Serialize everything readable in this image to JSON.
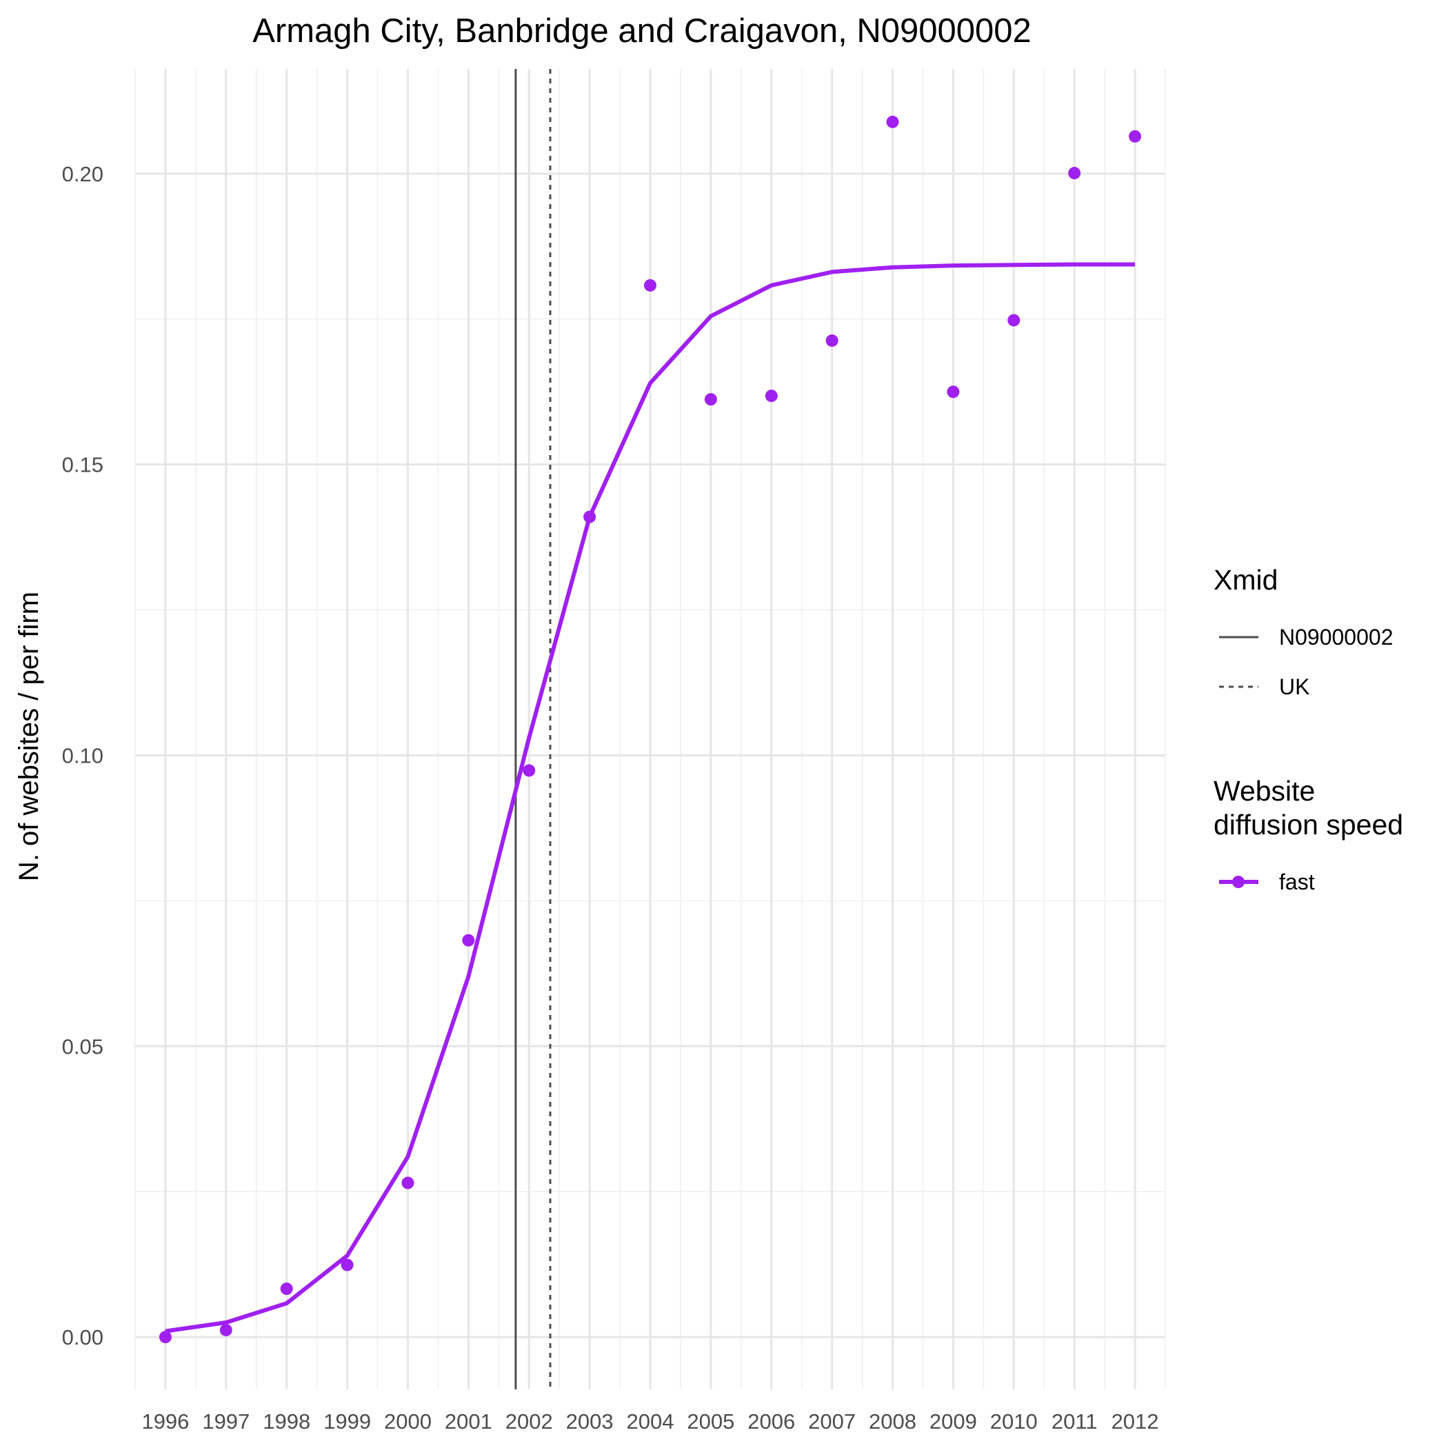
{
  "chart_data": {
    "type": "line",
    "title": "Armagh City, Banbridge and Craigavon, N09000002",
    "xlabel": "",
    "ylabel": "N. of websites / per firm",
    "x": [
      1996,
      1997,
      1998,
      1999,
      2000,
      2001,
      2002,
      2003,
      2004,
      2005,
      2006,
      2007,
      2008,
      2009,
      2010,
      2011,
      2012
    ],
    "x_tick_labels": [
      "1996",
      "1997",
      "1998",
      "1999",
      "2000",
      "2001",
      "2002",
      "2003",
      "2004",
      "2005",
      "2006",
      "2007",
      "2008",
      "2009",
      "2010",
      "2011",
      "2012"
    ],
    "xlim": [
      1995.5,
      2012.5
    ],
    "ylim": [
      -0.009,
      0.218
    ],
    "y_ticks": [
      0.0,
      0.05,
      0.1,
      0.15,
      0.2
    ],
    "y_tick_labels": [
      "0.00",
      "0.05",
      "0.10",
      "0.15",
      "0.20"
    ],
    "grid": true,
    "series": [
      {
        "name": "fast",
        "color": "#a020f0",
        "points": [
          0.0,
          0.0012,
          0.0083,
          0.0124,
          0.0265,
          0.0682,
          0.0974,
          0.141,
          0.1808,
          0.1612,
          0.1618,
          0.1713,
          0.2089,
          0.1625,
          0.1748,
          0.2001,
          0.2064
        ],
        "fitted": [
          0.001,
          0.0025,
          0.0058,
          0.014,
          0.031,
          0.062,
          0.103,
          0.141,
          0.164,
          0.1755,
          0.1808,
          0.1831,
          0.1839,
          0.1842,
          0.1843,
          0.1844,
          0.1844
        ]
      }
    ],
    "vlines": [
      {
        "name": "N09000002",
        "x": 2001.78,
        "linetype": "solid",
        "color": "#4d4d4d"
      },
      {
        "name": "UK",
        "x": 2002.35,
        "linetype": "dashed",
        "color": "#4d4d4d"
      }
    ],
    "legend": {
      "placement": "right",
      "xmid_title": "Xmid",
      "xmid_items": [
        "N09000002",
        "UK"
      ],
      "speed_title_line1": "Website",
      "speed_title_line2": "diffusion speed",
      "speed_items": [
        "fast"
      ]
    }
  }
}
